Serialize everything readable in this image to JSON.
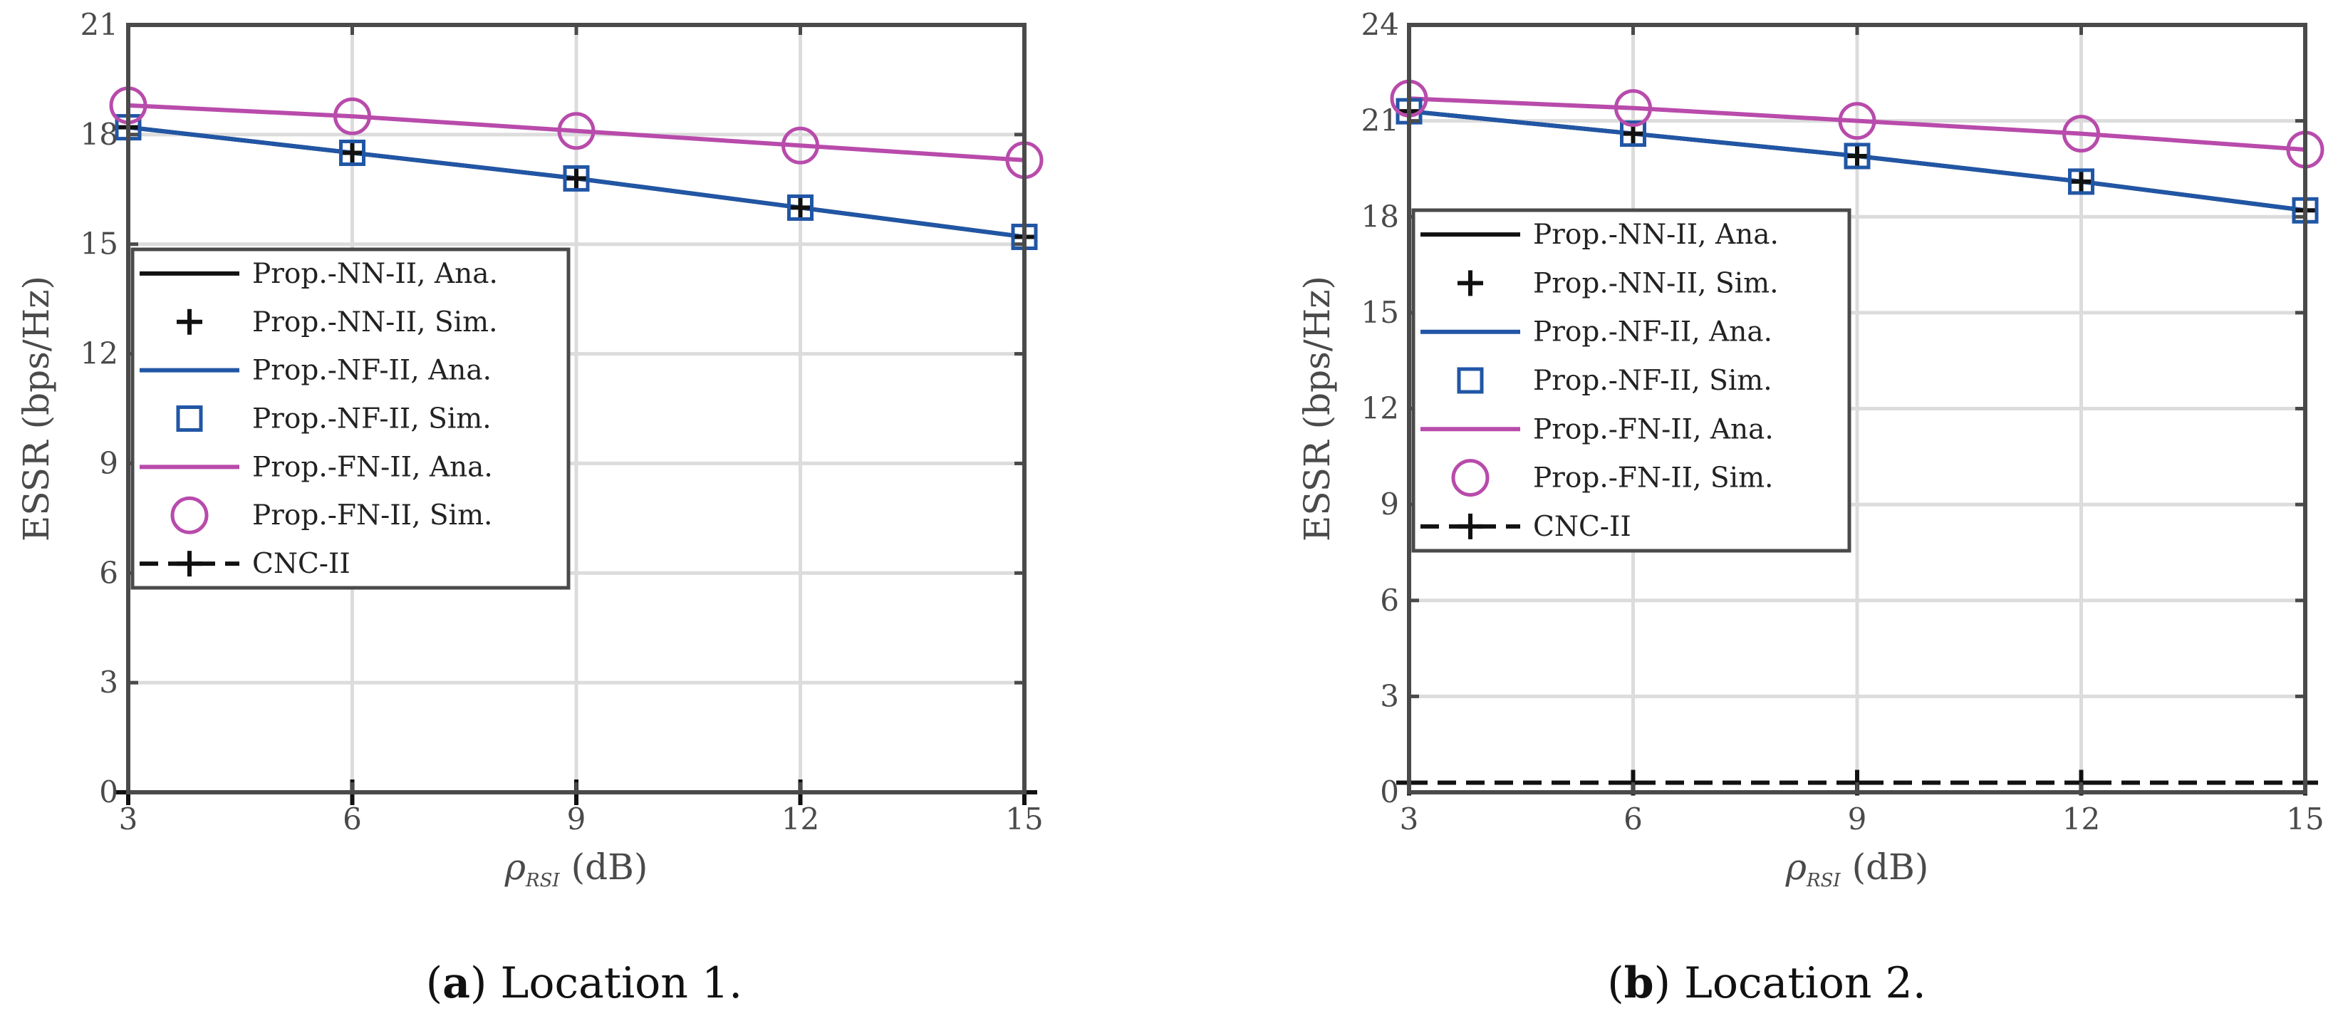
{
  "figure": {
    "caption_a_letter": "a",
    "caption_a_text": "Location 1.",
    "caption_b_letter": "b",
    "caption_b_text": "Location 2."
  },
  "colors": {
    "nn": "#111111",
    "nf": "#2156a5",
    "fn": "#b84bab",
    "cnc": "#111111",
    "axes": "#4a4a4a",
    "grid": "#dcdcdc"
  },
  "chart_data": [
    {
      "type": "line",
      "panel": "a",
      "xlabel_symbol": "ρ",
      "xlabel_sub": "RSI",
      "xlabel_unit": "(dB)",
      "ylabel": "ESSR (bps/Hz)",
      "xlim": [
        3,
        15
      ],
      "ylim": [
        0,
        21
      ],
      "xticks": [
        "3",
        "6",
        "9",
        "12",
        "15"
      ],
      "yticks": [
        "0",
        "3",
        "6",
        "9",
        "12",
        "15",
        "18",
        "21"
      ],
      "grid": true,
      "legend_position": "middle-left",
      "x": [
        3,
        6,
        9,
        12,
        15
      ],
      "series": [
        {
          "name": "Prop.-NN-II, Ana.",
          "key": "nn",
          "style": "line",
          "values": [
            18.2,
            17.5,
            16.8,
            16.0,
            15.2
          ]
        },
        {
          "name": "Prop.-NN-II, Sim.",
          "key": "nn",
          "style": "plus",
          "values": [
            18.2,
            17.5,
            16.8,
            16.0,
            15.2
          ]
        },
        {
          "name": "Prop.-NF-II, Ana.",
          "key": "nf",
          "style": "line",
          "values": [
            18.2,
            17.5,
            16.8,
            16.0,
            15.2
          ]
        },
        {
          "name": "Prop.-NF-II, Sim.",
          "key": "nf",
          "style": "square",
          "values": [
            18.2,
            17.5,
            16.8,
            16.0,
            15.2
          ]
        },
        {
          "name": "Prop.-FN-II, Ana.",
          "key": "fn",
          "style": "line",
          "values": [
            18.8,
            18.5,
            18.1,
            17.7,
            17.3
          ]
        },
        {
          "name": "Prop.-FN-II, Sim.",
          "key": "fn",
          "style": "circle",
          "values": [
            18.8,
            18.5,
            18.1,
            17.7,
            17.3
          ]
        },
        {
          "name": "CNC-II",
          "key": "cnc",
          "style": "dash-plus",
          "values": [
            0,
            0,
            0,
            0,
            0
          ]
        }
      ]
    },
    {
      "type": "line",
      "panel": "b",
      "xlabel_symbol": "ρ",
      "xlabel_sub": "RSI",
      "xlabel_unit": "(dB)",
      "ylabel": "ESSR (bps/Hz)",
      "xlim": [
        3,
        15
      ],
      "ylim": [
        0,
        24
      ],
      "xticks": [
        "3",
        "6",
        "9",
        "12",
        "15"
      ],
      "yticks": [
        "0",
        "3",
        "6",
        "9",
        "12",
        "15",
        "18",
        "21",
        "24"
      ],
      "grid": true,
      "legend_position": "middle-left",
      "x": [
        3,
        6,
        9,
        12,
        15
      ],
      "series": [
        {
          "name": "Prop.-NN-II, Ana.",
          "key": "nn",
          "style": "line",
          "values": [
            21.3,
            20.6,
            19.9,
            19.1,
            18.2
          ]
        },
        {
          "name": "Prop.-NN-II, Sim.",
          "key": "nn",
          "style": "plus",
          "values": [
            21.3,
            20.6,
            19.9,
            19.1,
            18.2
          ]
        },
        {
          "name": "Prop.-NF-II, Ana.",
          "key": "nf",
          "style": "line",
          "values": [
            21.3,
            20.6,
            19.9,
            19.1,
            18.2
          ]
        },
        {
          "name": "Prop.-NF-II, Sim.",
          "key": "nf",
          "style": "square",
          "values": [
            21.3,
            20.6,
            19.9,
            19.1,
            18.2
          ]
        },
        {
          "name": "Prop.-FN-II, Ana.",
          "key": "fn",
          "style": "line",
          "values": [
            21.7,
            21.4,
            21.0,
            20.6,
            20.1
          ]
        },
        {
          "name": "Prop.-FN-II, Sim.",
          "key": "fn",
          "style": "circle",
          "values": [
            21.7,
            21.4,
            21.0,
            20.6,
            20.1
          ]
        },
        {
          "name": "CNC-II",
          "key": "cnc",
          "style": "dash-plus",
          "values": [
            0.3,
            0.3,
            0.3,
            0.3,
            0.3
          ]
        }
      ]
    }
  ]
}
